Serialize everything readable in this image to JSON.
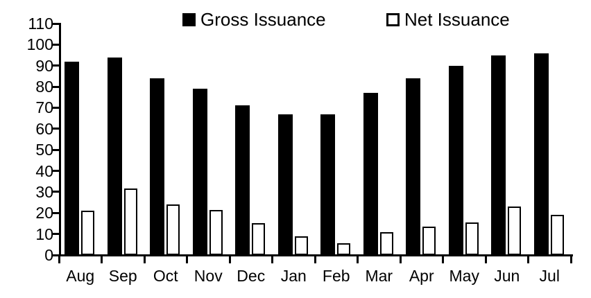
{
  "chart_data": {
    "type": "bar",
    "title": "",
    "xlabel": "",
    "ylabel": "",
    "categories": [
      "Aug",
      "Sep",
      "Oct",
      "Nov",
      "Dec",
      "Jan",
      "Feb",
      "Mar",
      "Apr",
      "May",
      "Jun",
      "Jul"
    ],
    "series": [
      {
        "name": "Gross Issuance",
        "style": "filled",
        "fill_color": "#000000",
        "values": [
          92,
          94,
          84,
          79,
          71,
          67,
          67,
          77,
          84,
          90,
          95,
          96
        ]
      },
      {
        "name": "Net Issuance",
        "style": "hollow",
        "fill_color": "#ffffff",
        "border_color": "#000000",
        "values": [
          21,
          31.5,
          24,
          21.5,
          15,
          9,
          5.5,
          11,
          13.5,
          15.5,
          23,
          19
        ]
      }
    ],
    "ylim": [
      0,
      110
    ],
    "y_ticks": [
      0,
      10,
      20,
      30,
      40,
      50,
      60,
      70,
      80,
      90,
      100,
      110
    ],
    "grid": false,
    "legend_position": "top",
    "axis_color": "#000000",
    "background_color": "#ffffff"
  }
}
